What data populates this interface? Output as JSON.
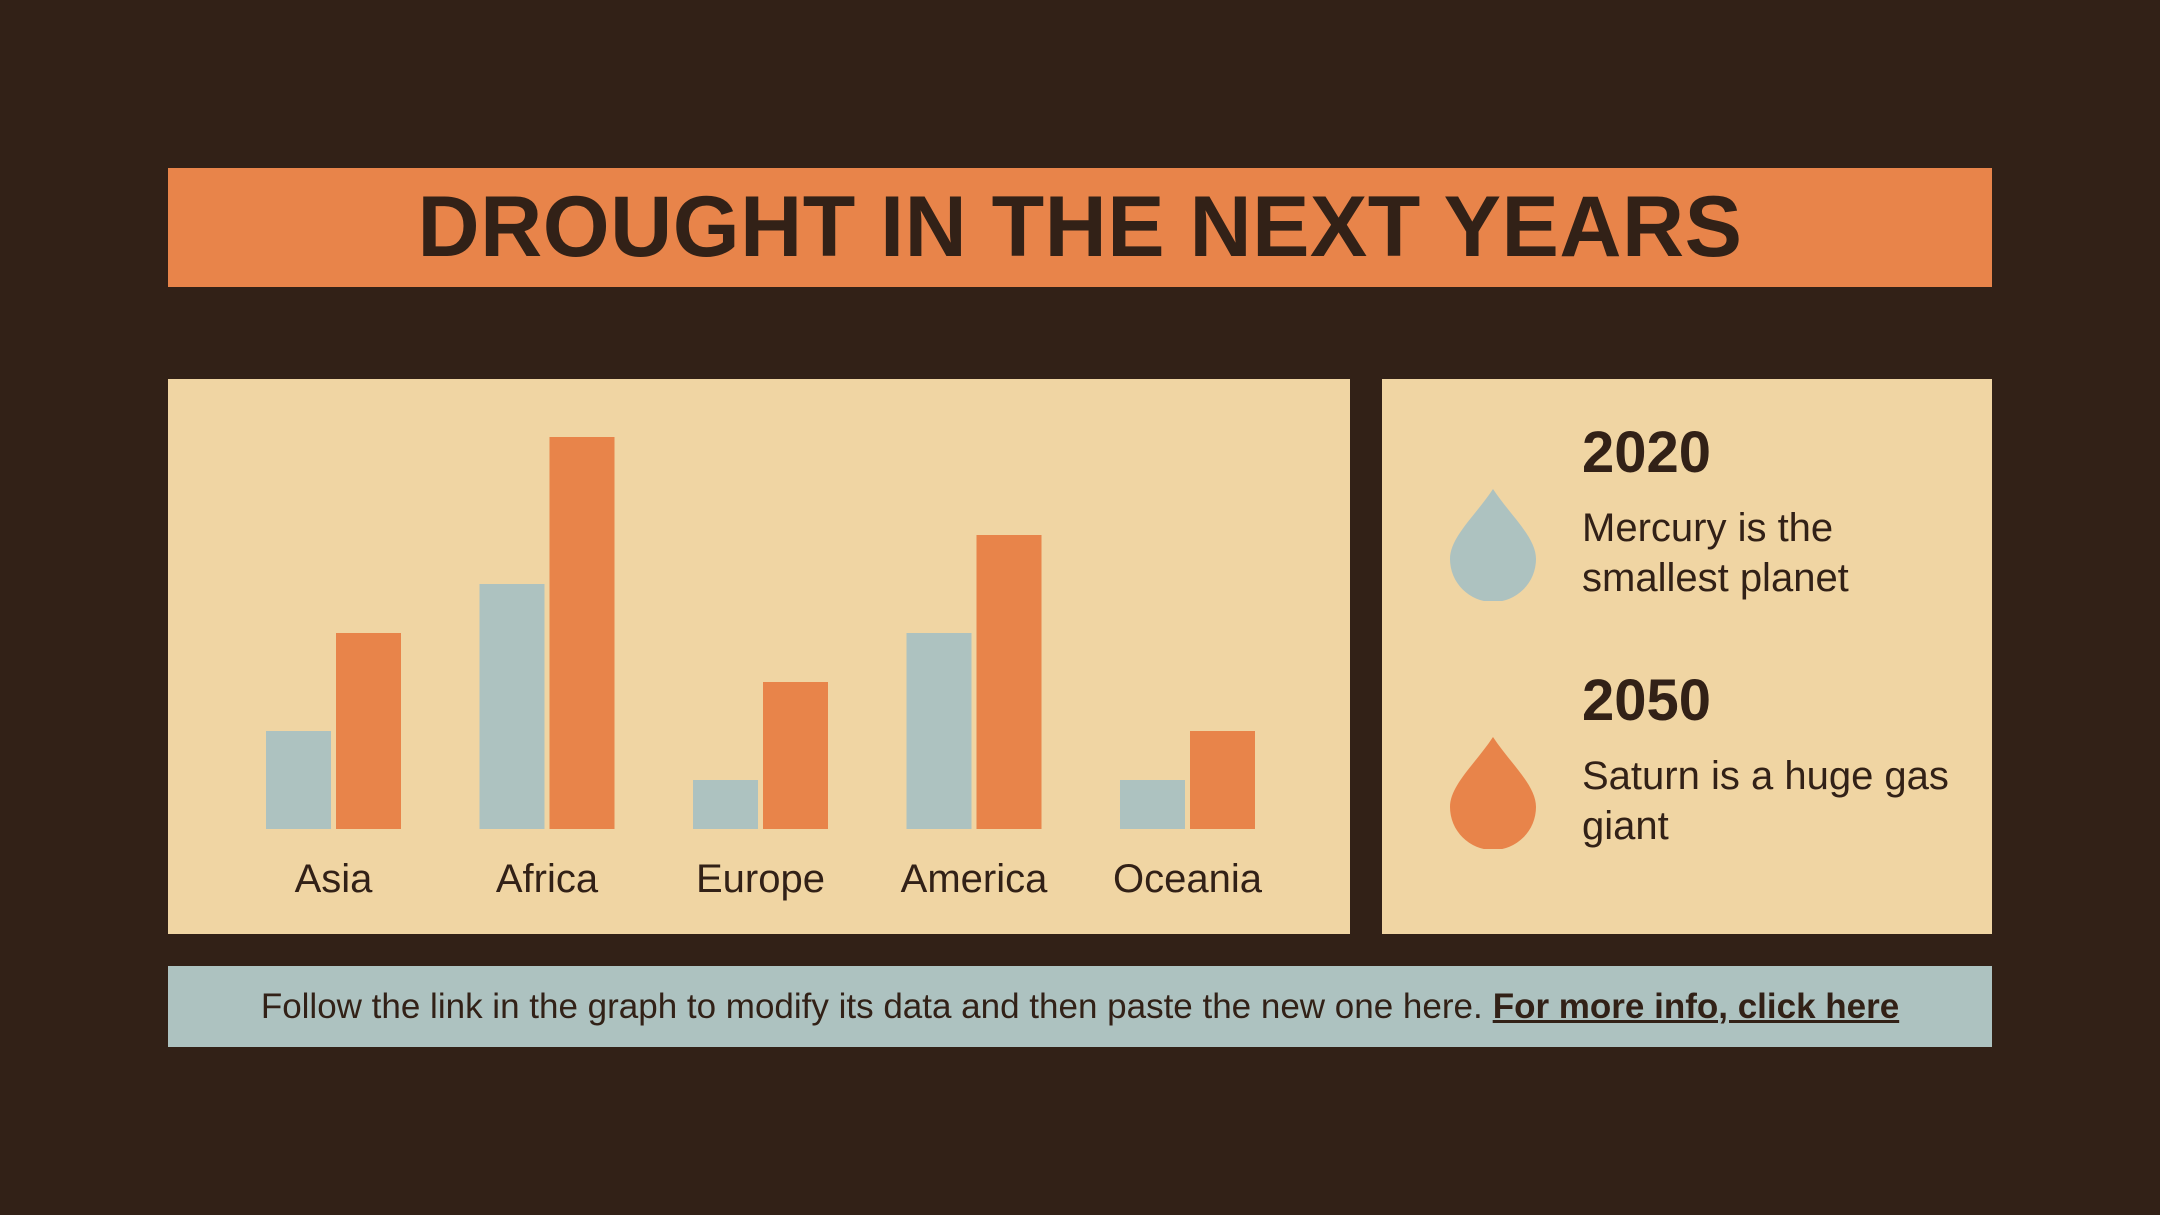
{
  "title": "DROUGHT IN THE NEXT YEARS",
  "colors": {
    "background": "#322117",
    "accent": "#e8844a",
    "panel": "#f0d5a3",
    "secondary": "#adc2c0",
    "text": "#322117"
  },
  "chart_data": {
    "type": "bar",
    "categories": [
      "Asia",
      "Africa",
      "Europe",
      "America",
      "Oceania"
    ],
    "series": [
      {
        "values": [
          2,
          5,
          1,
          4,
          1
        ],
        "color": "#adc2c0"
      },
      {
        "values": [
          4,
          8,
          3,
          6,
          2
        ],
        "color": "#e8844a"
      }
    ],
    "ylim": [
      0,
      8
    ],
    "grid": false,
    "xlabel": "",
    "ylabel": ""
  },
  "info": [
    {
      "year": "2020",
      "desc": "Mercury is the smallest planet",
      "icon": "water-drop-icon",
      "color": "#adc2c0"
    },
    {
      "year": "2050",
      "desc": "Saturn is a huge gas giant",
      "icon": "water-drop-icon",
      "color": "#e8844a"
    }
  ],
  "footer": {
    "text": "Follow the link in the graph to modify its data and then paste the new one here.",
    "link": "For more info, click here"
  }
}
